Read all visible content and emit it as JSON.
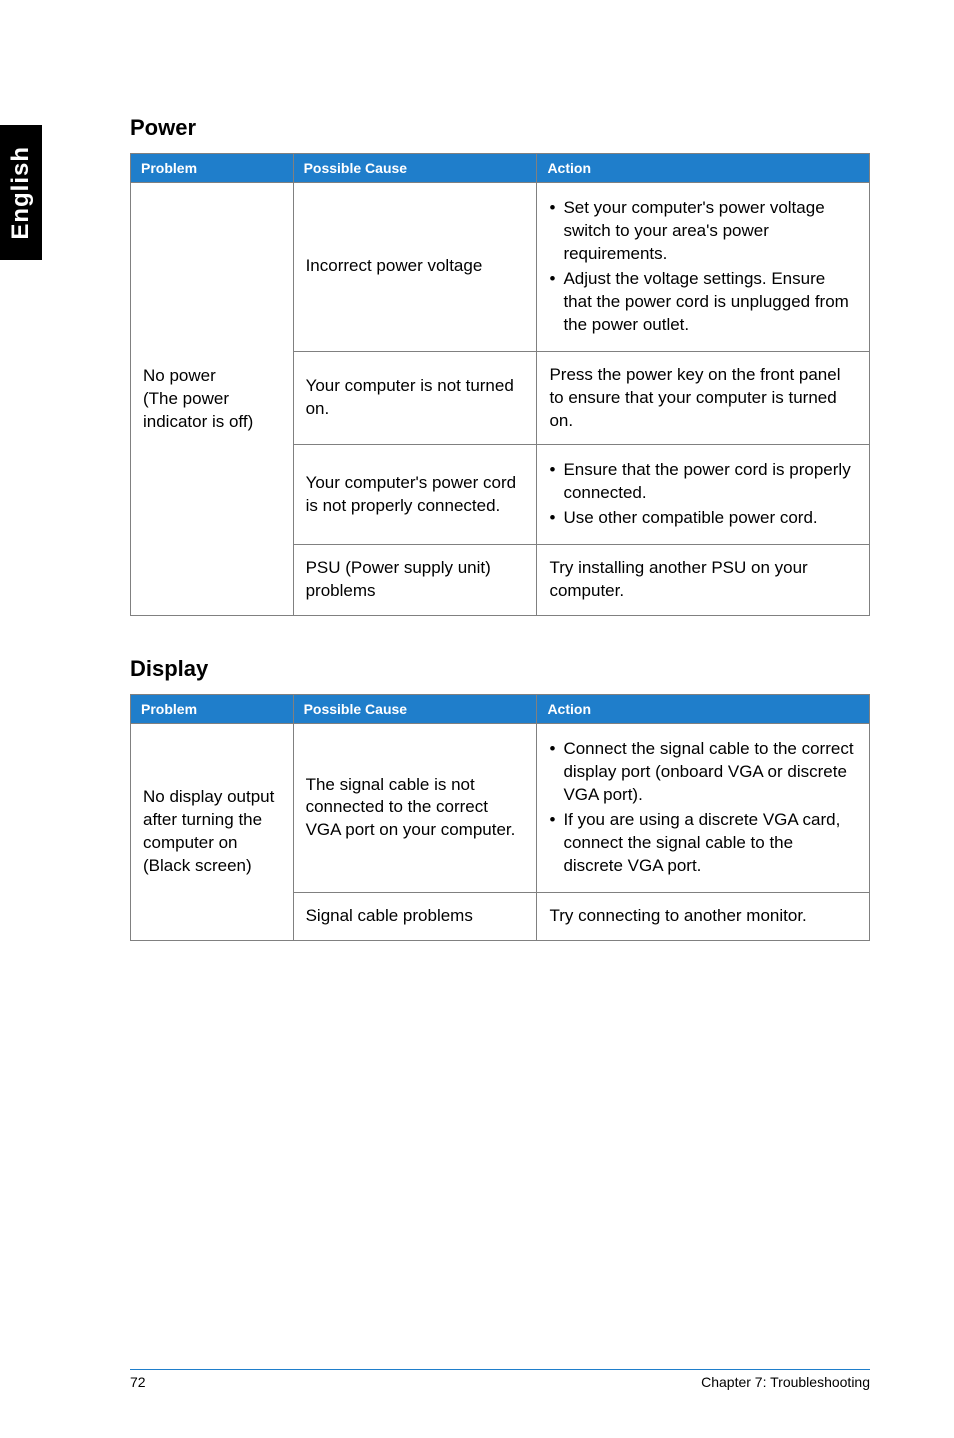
{
  "sideTab": "English",
  "sections": {
    "power": {
      "heading": "Power",
      "headers": {
        "problem": "Problem",
        "cause": "Possible Cause",
        "action": "Action"
      },
      "problem": "No power\n(The power indicator is off)",
      "rows": {
        "r1": {
          "cause": "Incorrect power voltage",
          "actions": {
            "a1": "Set your computer's power voltage switch to your area's power requirements.",
            "a2": "Adjust the voltage settings. Ensure that the power cord is unplugged from the power outlet."
          }
        },
        "r2": {
          "cause": "Your computer is not turned on.",
          "action": "Press the power key on the front panel to ensure that your computer is turned on."
        },
        "r3": {
          "cause": "Your computer's power cord is not properly connected.",
          "actions": {
            "a1": "Ensure that the power cord is properly connected.",
            "a2": "Use other compatible power cord."
          }
        },
        "r4": {
          "cause": "PSU (Power supply unit) problems",
          "action": "Try installing another PSU on your computer."
        }
      }
    },
    "display": {
      "heading": "Display",
      "headers": {
        "problem": "Problem",
        "cause": "Possible Cause",
        "action": "Action"
      },
      "problem": "No display output after turning the computer on (Black screen)",
      "rows": {
        "r1": {
          "cause": "The signal cable is not connected to the correct VGA port on your computer.",
          "actions": {
            "a1": "Connect the signal cable to the correct display port (onboard VGA or discrete VGA port).",
            "a2": "If you are using a discrete VGA card, connect the signal cable to the discrete VGA port."
          }
        },
        "r2": {
          "cause": "Signal cable problems",
          "action": "Try connecting to another monitor."
        }
      }
    }
  },
  "footer": {
    "pageNumber": "72",
    "chapter": "Chapter 7: Troubleshooting"
  },
  "style": {
    "headerBg": "#1f7ecb",
    "headerText": "#ffffff",
    "borderColor": "#808080",
    "bodyText": "#000000",
    "sideTabBg": "#000000",
    "sideTabText": "#ffffff"
  }
}
